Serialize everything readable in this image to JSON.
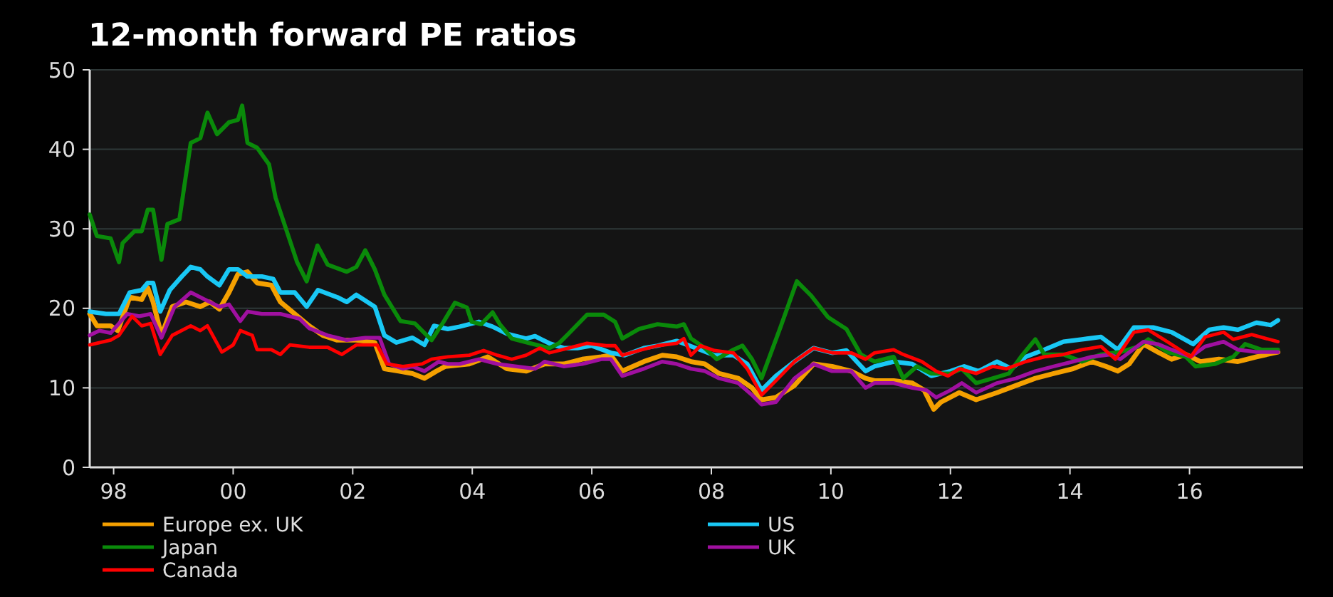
{
  "chart_data": {
    "type": "line",
    "title": "12-month forward PE ratios",
    "xlim": [
      1997.6,
      2017.9
    ],
    "xticks": [
      {
        "value": 1998,
        "label": "98"
      },
      {
        "value": 2000,
        "label": "00"
      },
      {
        "value": 2002,
        "label": "02"
      },
      {
        "value": 2004,
        "label": "04"
      },
      {
        "value": 2006,
        "label": "06"
      },
      {
        "value": 2008,
        "label": "08"
      },
      {
        "value": 2010,
        "label": "10"
      },
      {
        "value": 2012,
        "label": "12"
      },
      {
        "value": 2014,
        "label": "14"
      },
      {
        "value": 2016,
        "label": "16"
      }
    ],
    "ylim": [
      0,
      50
    ],
    "yticks": [
      0,
      10,
      20,
      30,
      40,
      50
    ],
    "grid": "y",
    "legend": "bottom",
    "marker": "none",
    "line_style": "solid",
    "series": [
      {
        "name": "Europe ex. UK",
        "color": "#f5a000",
        "x": [
          1997.6,
          1997.72,
          1997.95,
          1998.07,
          1998.27,
          1998.47,
          1998.57,
          1998.66,
          1998.8,
          1998.98,
          1999.21,
          1999.45,
          1999.61,
          1999.77,
          1999.93,
          2000.08,
          2000.24,
          2000.4,
          2000.64,
          2000.79,
          2001.03,
          2001.27,
          2001.5,
          2001.74,
          2002.06,
          2002.37,
          2002.53,
          2002.77,
          2003.0,
          2003.2,
          2003.4,
          2003.55,
          2003.95,
          2004.26,
          2004.58,
          2004.9,
          2005.21,
          2005.53,
          2005.84,
          2006.16,
          2006.32,
          2006.51,
          2006.87,
          2007.18,
          2007.42,
          2007.66,
          2007.89,
          2008.13,
          2008.45,
          2008.68,
          2008.84,
          2009.08,
          2009.39,
          2009.71,
          2010.02,
          2010.34,
          2010.58,
          2010.73,
          2011.05,
          2011.36,
          2011.56,
          2011.72,
          2011.84,
          2012.15,
          2012.43,
          2012.78,
          2013.1,
          2013.42,
          2013.73,
          2014.05,
          2014.36,
          2014.6,
          2014.8,
          2014.99,
          2015.23,
          2015.47,
          2015.7,
          2015.94,
          2016.18,
          2016.49,
          2016.81,
          2017.12,
          2017.48
        ],
        "values": [
          19.3,
          17.8,
          17.8,
          17.2,
          21.4,
          21.1,
          22.6,
          20.8,
          16.6,
          20.2,
          20.8,
          20.2,
          20.8,
          19.9,
          22.0,
          24.3,
          24.6,
          23.2,
          22.9,
          20.8,
          19.3,
          17.8,
          16.6,
          16.0,
          16.0,
          15.7,
          12.4,
          12.1,
          11.8,
          11.2,
          12.1,
          12.7,
          13.0,
          13.9,
          12.4,
          12.1,
          13.0,
          13.0,
          13.6,
          13.9,
          14.1,
          12.1,
          13.3,
          14.1,
          13.9,
          13.3,
          13.0,
          11.8,
          11.2,
          10.0,
          8.5,
          8.8,
          10.3,
          13.0,
          12.7,
          12.1,
          11.2,
          10.9,
          10.9,
          10.6,
          9.7,
          7.3,
          8.2,
          9.4,
          8.5,
          9.4,
          10.3,
          11.2,
          11.8,
          12.4,
          13.3,
          12.7,
          12.1,
          13.0,
          15.5,
          14.5,
          13.6,
          14.2,
          13.3,
          13.6,
          13.3,
          13.9,
          14.5
        ]
      },
      {
        "name": "US",
        "color": "#19c8f5",
        "x": [
          1997.6,
          1997.87,
          1998.09,
          1998.27,
          1998.47,
          1998.57,
          1998.66,
          1998.78,
          1998.94,
          1999.14,
          1999.29,
          1999.45,
          1999.57,
          1999.77,
          1999.93,
          2000.08,
          2000.24,
          2000.48,
          2000.67,
          2000.79,
          2001.03,
          2001.23,
          2001.42,
          2001.74,
          2001.9,
          2002.06,
          2002.37,
          2002.53,
          2002.73,
          2003.0,
          2003.2,
          2003.36,
          2003.59,
          2003.79,
          2004.11,
          2004.34,
          2004.58,
          2004.9,
          2005.05,
          2005.29,
          2005.53,
          2005.76,
          2006.0,
          2006.32,
          2006.55,
          2006.87,
          2007.1,
          2007.42,
          2007.74,
          2008.05,
          2008.37,
          2008.6,
          2008.84,
          2009.08,
          2009.39,
          2009.71,
          2010.02,
          2010.26,
          2010.58,
          2010.73,
          2011.05,
          2011.36,
          2011.68,
          2012.0,
          2012.23,
          2012.47,
          2012.78,
          2013.02,
          2013.26,
          2013.57,
          2013.89,
          2014.2,
          2014.52,
          2014.8,
          2015.07,
          2015.39,
          2015.7,
          2016.06,
          2016.33,
          2016.57,
          2016.81,
          2017.12,
          2017.36,
          2017.48
        ],
        "values": [
          19.6,
          19.3,
          19.3,
          22.0,
          22.3,
          23.2,
          23.2,
          19.6,
          22.3,
          24.0,
          25.2,
          24.9,
          24.0,
          22.9,
          24.9,
          24.9,
          24.0,
          24.0,
          23.7,
          22.0,
          22.0,
          20.2,
          22.3,
          21.4,
          20.8,
          21.7,
          20.2,
          16.6,
          15.7,
          16.3,
          15.4,
          17.8,
          17.4,
          17.7,
          18.3,
          17.7,
          16.8,
          16.2,
          16.5,
          15.6,
          15.0,
          15.0,
          15.3,
          14.4,
          14.1,
          15.0,
          15.3,
          15.9,
          15.0,
          14.1,
          14.1,
          13.0,
          9.7,
          11.5,
          13.3,
          15.0,
          14.4,
          14.7,
          12.1,
          12.7,
          13.3,
          13.0,
          11.5,
          12.1,
          12.7,
          12.1,
          13.3,
          12.4,
          13.9,
          14.8,
          15.8,
          16.1,
          16.4,
          14.8,
          17.6,
          17.6,
          17.0,
          15.5,
          17.3,
          17.6,
          17.3,
          18.2,
          17.9,
          18.5
        ]
      },
      {
        "name": "Japan",
        "color": "#0a8a0a",
        "x": [
          1997.6,
          1997.72,
          1997.95,
          1998.09,
          1998.15,
          1998.35,
          1998.47,
          1998.57,
          1998.66,
          1998.8,
          1998.9,
          1999.1,
          1999.29,
          1999.45,
          1999.57,
          1999.73,
          1999.93,
          2000.08,
          2000.15,
          2000.24,
          2000.4,
          2000.6,
          2000.71,
          2000.91,
          2001.07,
          2001.23,
          2001.41,
          2001.58,
          2001.9,
          2002.06,
          2002.21,
          2002.37,
          2002.53,
          2002.8,
          2003.04,
          2003.32,
          2003.52,
          2003.71,
          2003.91,
          2003.99,
          2004.15,
          2004.34,
          2004.46,
          2004.66,
          2004.97,
          2005.29,
          2005.45,
          2005.61,
          2005.92,
          2006.2,
          2006.39,
          2006.51,
          2006.79,
          2007.1,
          2007.42,
          2007.54,
          2007.66,
          2007.89,
          2008.09,
          2008.37,
          2008.52,
          2008.68,
          2008.84,
          2009.16,
          2009.43,
          2009.67,
          2009.95,
          2010.26,
          2010.5,
          2010.73,
          2011.05,
          2011.21,
          2011.44,
          2011.68,
          2012.0,
          2012.19,
          2012.43,
          2012.71,
          2012.98,
          2013.18,
          2013.42,
          2013.57,
          2013.89,
          2014.2,
          2014.52,
          2014.84,
          2015.15,
          2015.31,
          2015.63,
          2015.94,
          2016.1,
          2016.42,
          2016.73,
          2016.93,
          2017.2,
          2017.48
        ],
        "values": [
          31.8,
          29.1,
          28.8,
          25.8,
          28.2,
          29.7,
          29.7,
          32.4,
          32.4,
          26.1,
          30.6,
          31.2,
          40.8,
          41.4,
          44.6,
          41.9,
          43.4,
          43.7,
          45.5,
          40.8,
          40.2,
          38.1,
          33.9,
          29.4,
          25.8,
          23.4,
          27.9,
          25.5,
          24.6,
          25.2,
          27.3,
          24.9,
          21.7,
          18.4,
          18.1,
          16.0,
          18.3,
          20.7,
          20.1,
          18.3,
          18.0,
          19.5,
          18.0,
          16.2,
          15.6,
          15.0,
          15.6,
          16.8,
          19.2,
          19.2,
          18.3,
          16.2,
          17.4,
          18.0,
          17.7,
          18.0,
          16.2,
          15.0,
          13.6,
          14.8,
          15.3,
          13.6,
          11.2,
          17.7,
          23.4,
          21.6,
          18.9,
          17.4,
          14.2,
          13.3,
          13.9,
          11.2,
          12.7,
          11.8,
          11.8,
          12.4,
          10.6,
          11.2,
          11.8,
          13.9,
          16.1,
          14.2,
          14.2,
          13.3,
          14.2,
          14.5,
          15.2,
          16.1,
          14.5,
          13.9,
          12.7,
          13.0,
          13.9,
          15.5,
          14.8,
          14.8
        ]
      },
      {
        "name": "UK",
        "color": "#a010a0",
        "x": [
          1997.6,
          1997.76,
          1997.95,
          1998.23,
          1998.43,
          1998.62,
          1998.8,
          1999.02,
          1999.29,
          1999.53,
          1999.77,
          1999.93,
          2000.12,
          2000.24,
          2000.48,
          2000.79,
          2001.11,
          2001.27,
          2001.58,
          2001.9,
          2002.21,
          2002.45,
          2002.61,
          2002.84,
          2003.0,
          2003.2,
          2003.44,
          2003.59,
          2003.79,
          2004.11,
          2004.42,
          2004.74,
          2005.05,
          2005.21,
          2005.53,
          2005.84,
          2006.16,
          2006.32,
          2006.51,
          2006.87,
          2007.18,
          2007.42,
          2007.66,
          2007.89,
          2008.13,
          2008.45,
          2008.68,
          2008.84,
          2009.08,
          2009.39,
          2009.71,
          2010.02,
          2010.34,
          2010.58,
          2010.73,
          2011.05,
          2011.36,
          2011.6,
          2011.76,
          2012.0,
          2012.19,
          2012.43,
          2012.78,
          2013.1,
          2013.42,
          2013.73,
          2014.05,
          2014.36,
          2014.68,
          2014.84,
          2015.23,
          2015.47,
          2015.7,
          2016.02,
          2016.26,
          2016.57,
          2016.81,
          2017.12,
          2017.48
        ],
        "values": [
          16.6,
          17.2,
          16.9,
          19.3,
          19.0,
          19.3,
          16.3,
          20.2,
          22.0,
          21.1,
          20.2,
          20.5,
          18.4,
          19.6,
          19.3,
          19.3,
          18.7,
          17.5,
          16.6,
          16.0,
          16.3,
          16.3,
          13.0,
          12.4,
          12.7,
          12.1,
          13.3,
          13.0,
          13.0,
          13.6,
          13.0,
          12.7,
          12.4,
          13.3,
          12.7,
          13.0,
          13.6,
          13.6,
          11.5,
          12.4,
          13.3,
          13.0,
          12.4,
          12.1,
          11.2,
          10.6,
          9.1,
          7.9,
          8.2,
          11.2,
          13.0,
          12.1,
          12.1,
          10.0,
          10.6,
          10.6,
          10.0,
          9.7,
          8.8,
          9.7,
          10.6,
          9.4,
          10.6,
          11.2,
          12.1,
          12.7,
          13.3,
          13.9,
          14.2,
          13.6,
          15.8,
          15.5,
          14.8,
          13.9,
          15.2,
          15.8,
          14.8,
          14.5,
          14.5
        ]
      },
      {
        "name": "Canada",
        "color": "#ff0000",
        "x": [
          1997.6,
          1997.95,
          1998.09,
          1998.31,
          1998.47,
          1998.62,
          1998.78,
          1998.98,
          1999.29,
          1999.45,
          1999.57,
          1999.81,
          2000.0,
          2000.12,
          2000.32,
          2000.4,
          2000.64,
          2000.79,
          2000.95,
          2001.27,
          2001.58,
          2001.82,
          2002.06,
          2002.41,
          2002.57,
          2002.84,
          2003.16,
          2003.32,
          2003.59,
          2003.95,
          2004.19,
          2004.42,
          2004.66,
          2004.9,
          2005.13,
          2005.29,
          2005.61,
          2005.92,
          2006.24,
          2006.39,
          2006.51,
          2006.79,
          2007.1,
          2007.42,
          2007.54,
          2007.66,
          2007.82,
          2008.05,
          2008.37,
          2008.6,
          2008.84,
          2009.08,
          2009.39,
          2009.71,
          2010.02,
          2010.34,
          2010.58,
          2010.73,
          2011.05,
          2011.21,
          2011.52,
          2011.76,
          2011.96,
          2012.15,
          2012.43,
          2012.71,
          2012.94,
          2013.26,
          2013.57,
          2013.89,
          2014.2,
          2014.52,
          2014.76,
          2015.07,
          2015.31,
          2015.63,
          2016.02,
          2016.26,
          2016.57,
          2016.73,
          2017.04,
          2017.48
        ],
        "values": [
          15.4,
          16.0,
          16.6,
          19.0,
          17.8,
          18.1,
          14.2,
          16.6,
          17.8,
          17.2,
          17.8,
          14.5,
          15.4,
          17.2,
          16.6,
          14.8,
          14.8,
          14.2,
          15.4,
          15.1,
          15.1,
          14.2,
          15.4,
          15.4,
          13.0,
          12.7,
          13.0,
          13.6,
          13.9,
          14.1,
          14.7,
          14.1,
          13.6,
          14.1,
          15.0,
          14.4,
          15.0,
          15.6,
          15.3,
          15.3,
          14.1,
          14.7,
          15.3,
          15.6,
          16.2,
          14.1,
          15.3,
          14.7,
          14.4,
          12.4,
          9.1,
          10.9,
          13.3,
          15.0,
          14.4,
          14.4,
          13.6,
          14.4,
          14.8,
          14.2,
          13.3,
          12.1,
          11.5,
          12.4,
          11.8,
          12.7,
          12.4,
          13.3,
          13.9,
          14.2,
          14.8,
          15.2,
          13.6,
          17.0,
          17.3,
          15.8,
          13.9,
          16.4,
          17.0,
          16.1,
          16.7,
          15.8
        ]
      }
    ]
  }
}
